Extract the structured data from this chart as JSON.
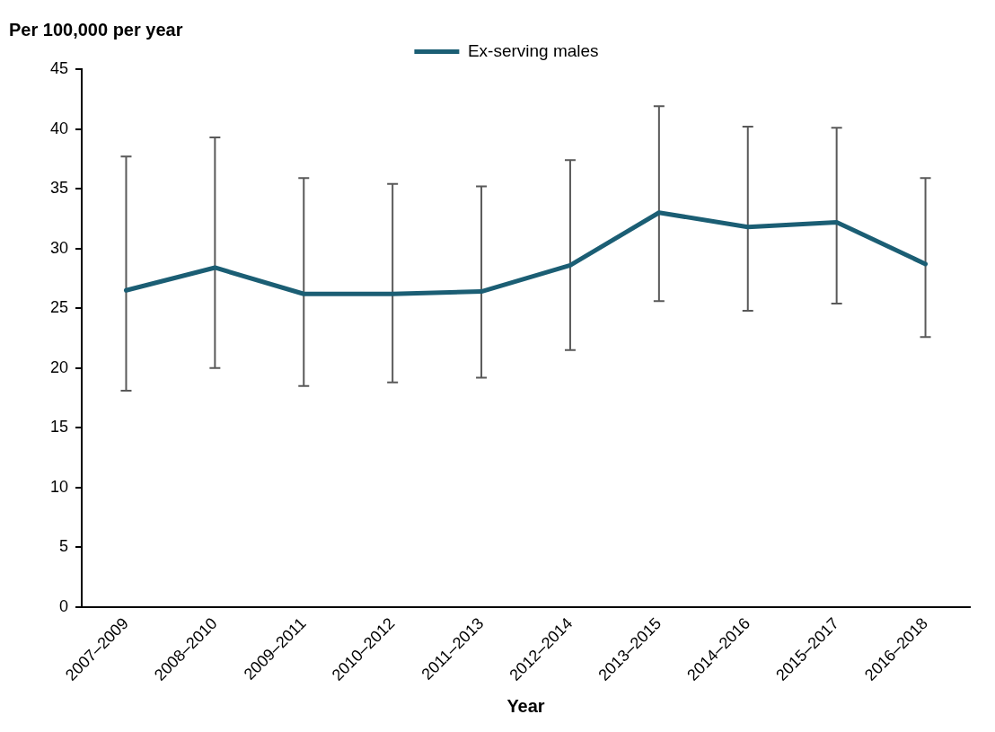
{
  "chart_data": {
    "type": "line",
    "ylabel": "Per 100,000 per year",
    "xlabel": "Year",
    "categories": [
      "2007–2009",
      "2008–2010",
      "2009–2011",
      "2010–2012",
      "2011–2013",
      "2012–2014",
      "2013–2015",
      "2014–2016",
      "2015–2017",
      "2016–2018"
    ],
    "series": [
      {
        "name": "Ex-serving males",
        "color": "#1b5e74",
        "values": [
          26.5,
          28.4,
          26.2,
          26.2,
          26.4,
          28.6,
          33.0,
          31.8,
          32.2,
          28.7
        ],
        "errors": [
          [
            18.1,
            37.7
          ],
          [
            20.0,
            39.3
          ],
          [
            18.5,
            35.9
          ],
          [
            18.8,
            35.4
          ],
          [
            19.2,
            35.2
          ],
          [
            21.5,
            37.4
          ],
          [
            25.6,
            41.9
          ],
          [
            24.8,
            40.2
          ],
          [
            25.4,
            40.1
          ],
          [
            22.6,
            35.9
          ]
        ]
      }
    ],
    "ylim": [
      0,
      45
    ],
    "yticks": [
      0,
      5,
      10,
      15,
      20,
      25,
      30,
      35,
      40,
      45
    ],
    "grid": false,
    "legend": "top",
    "marker": "none",
    "line_style": "solid"
  }
}
